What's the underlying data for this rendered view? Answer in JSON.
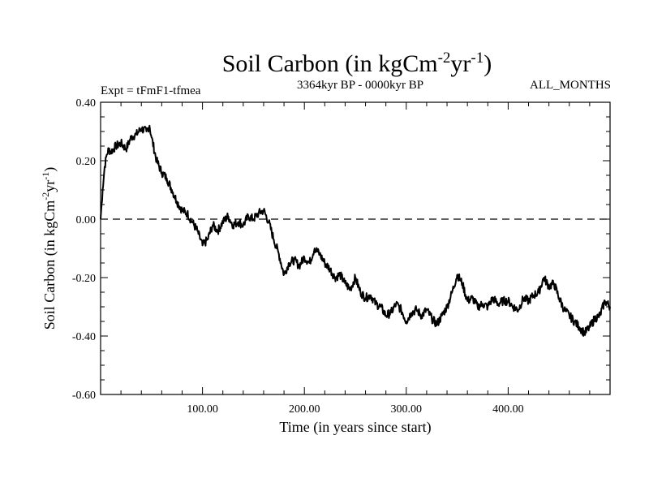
{
  "chart_data": {
    "type": "line",
    "title": {
      "main": "Soil Carbon (in kgCm",
      "exp1": "-2",
      "mid": "yr",
      "exp2": "-1",
      "end": ")"
    },
    "expt_label": "Expt = tFmF1-tfmea",
    "period_label": "3364kyr BP - 0000kyr BP",
    "months_label": "ALL_MONTHS",
    "xlabel": "Time (in years since start)",
    "ylabel": {
      "main": "Soil Carbon (in kgCm",
      "exp1": "-2",
      "mid": "yr",
      "exp2": "-1",
      "end": ")"
    },
    "xlim": [
      0,
      500
    ],
    "ylim": [
      -0.6,
      0.4
    ],
    "xticks": [
      100,
      200,
      300,
      400
    ],
    "xtick_labels": [
      "100.00",
      "200.00",
      "300.00",
      "400.00"
    ],
    "yticks": [
      -0.6,
      -0.4,
      -0.2,
      0.0,
      0.2,
      0.4
    ],
    "ytick_labels": [
      "-0.60",
      "-0.40",
      "-0.20",
      "0.00",
      "0.20",
      "0.40"
    ],
    "zero_line": "dashed",
    "series": [
      {
        "name": "Soil Carbon",
        "x": [
          0,
          2,
          4,
          6,
          8,
          10,
          15,
          20,
          25,
          30,
          35,
          40,
          45,
          48,
          50,
          55,
          60,
          65,
          70,
          75,
          80,
          85,
          90,
          95,
          100,
          105,
          110,
          115,
          120,
          125,
          130,
          135,
          140,
          145,
          150,
          155,
          160,
          165,
          170,
          175,
          180,
          185,
          190,
          195,
          200,
          205,
          210,
          215,
          220,
          225,
          230,
          235,
          240,
          245,
          250,
          255,
          260,
          265,
          270,
          275,
          280,
          285,
          290,
          295,
          300,
          305,
          310,
          315,
          320,
          325,
          330,
          335,
          340,
          345,
          350,
          355,
          360,
          365,
          370,
          375,
          380,
          385,
          390,
          395,
          400,
          405,
          410,
          415,
          420,
          425,
          430,
          435,
          440,
          445,
          450,
          455,
          460,
          465,
          470,
          475,
          480,
          485,
          490,
          495,
          500
        ],
        "y": [
          0.0,
          0.1,
          0.18,
          0.22,
          0.24,
          0.23,
          0.25,
          0.26,
          0.24,
          0.28,
          0.29,
          0.31,
          0.3,
          0.32,
          0.28,
          0.2,
          0.16,
          0.14,
          0.1,
          0.06,
          0.03,
          0.02,
          -0.01,
          -0.04,
          -0.09,
          -0.07,
          -0.02,
          -0.04,
          -0.01,
          0.01,
          -0.02,
          -0.01,
          -0.02,
          0.01,
          0.0,
          0.02,
          0.03,
          -0.01,
          -0.07,
          -0.12,
          -0.19,
          -0.15,
          -0.14,
          -0.16,
          -0.13,
          -0.15,
          -0.1,
          -0.12,
          -0.15,
          -0.17,
          -0.2,
          -0.19,
          -0.22,
          -0.24,
          -0.2,
          -0.25,
          -0.27,
          -0.26,
          -0.29,
          -0.3,
          -0.33,
          -0.32,
          -0.29,
          -0.31,
          -0.35,
          -0.32,
          -0.31,
          -0.33,
          -0.31,
          -0.34,
          -0.36,
          -0.33,
          -0.3,
          -0.25,
          -0.19,
          -0.22,
          -0.28,
          -0.27,
          -0.3,
          -0.29,
          -0.3,
          -0.27,
          -0.29,
          -0.28,
          -0.28,
          -0.3,
          -0.31,
          -0.27,
          -0.28,
          -0.26,
          -0.25,
          -0.2,
          -0.23,
          -0.22,
          -0.27,
          -0.31,
          -0.33,
          -0.35,
          -0.37,
          -0.39,
          -0.37,
          -0.34,
          -0.33,
          -0.28,
          -0.3
        ]
      }
    ]
  }
}
